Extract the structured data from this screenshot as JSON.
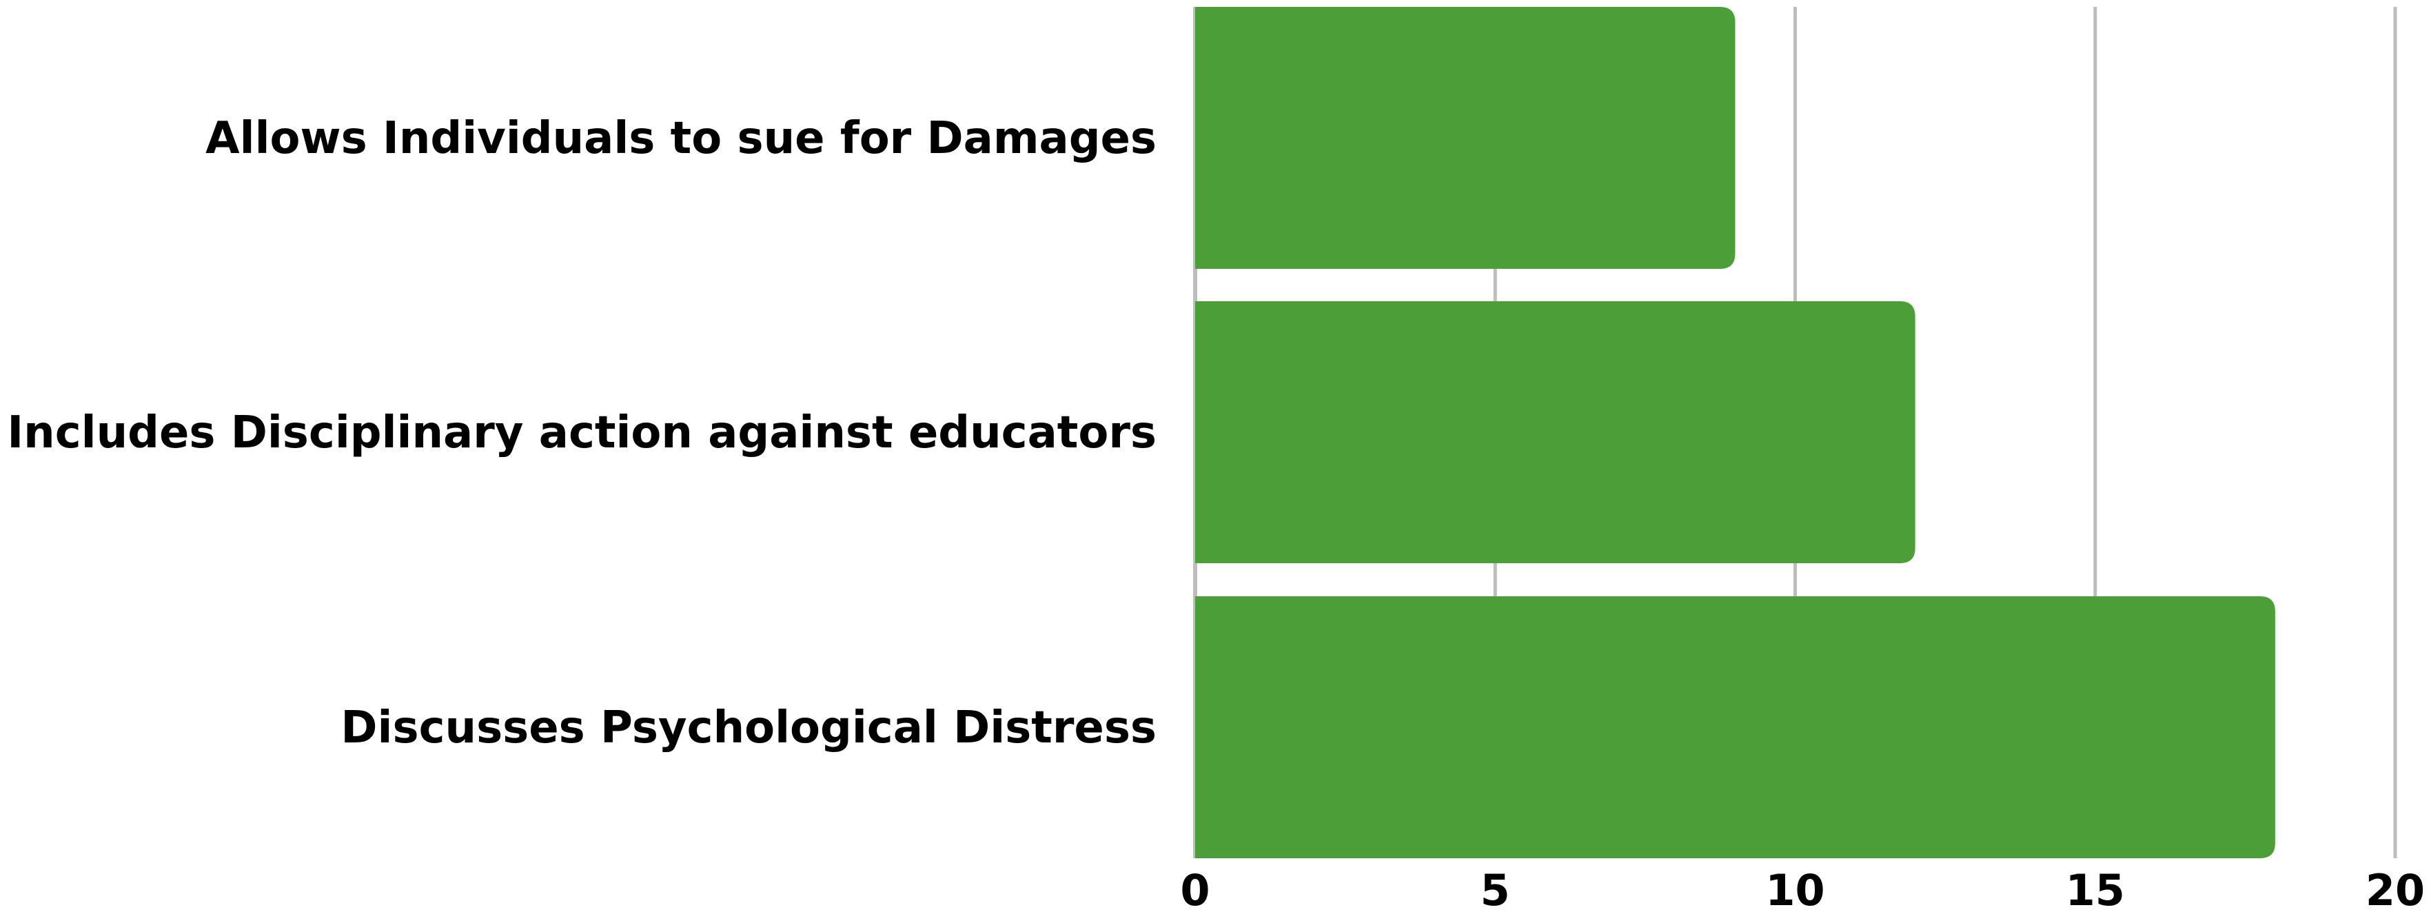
{
  "chart_data": {
    "type": "bar",
    "orientation": "horizontal",
    "categories": [
      "Allows Individuals to sue for Damages",
      "Includes Disciplinary action against educators",
      "Discusses Psychological Distress"
    ],
    "values": [
      9,
      12,
      18
    ],
    "xlim": [
      0,
      20
    ],
    "xticks": [
      "0",
      "5",
      "10",
      "15",
      "20"
    ],
    "grid": true,
    "title": "",
    "xlabel": "",
    "ylabel": "",
    "colors": {
      "bar": "#4c9f38",
      "grid": "#bdbdbd",
      "text": "#000000"
    }
  }
}
